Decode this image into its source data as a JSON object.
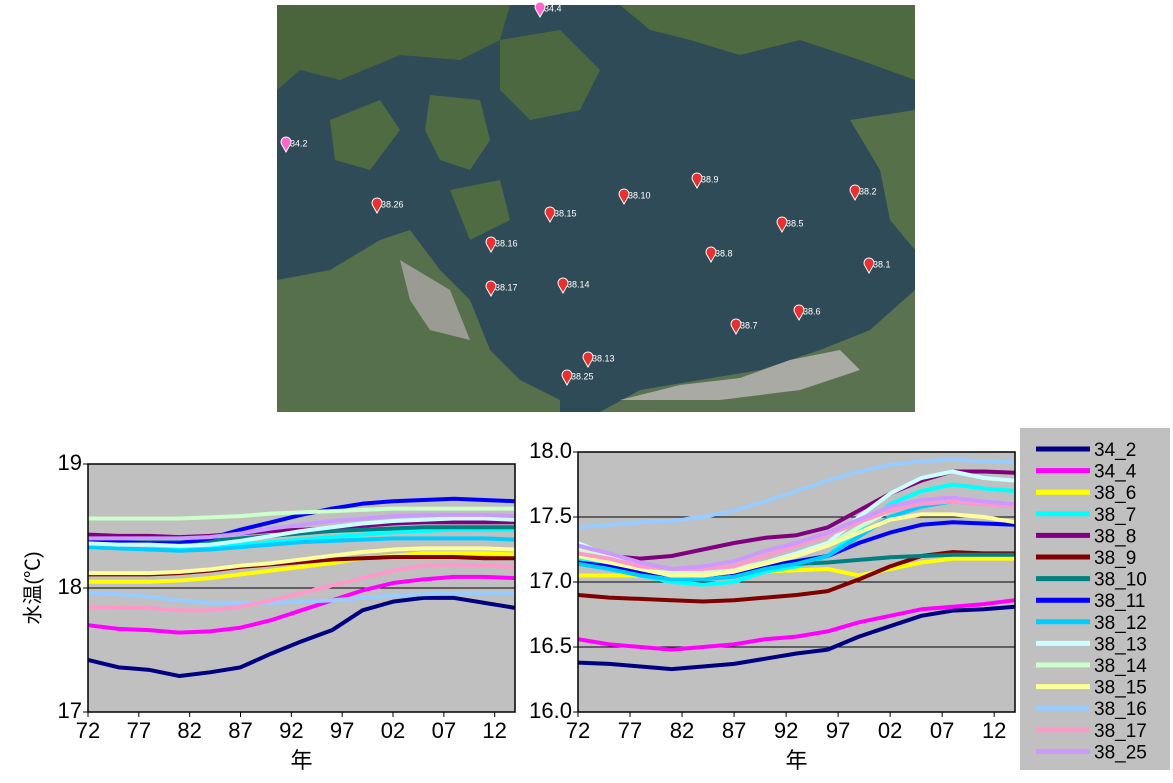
{
  "map": {
    "markers": [
      "34.4",
      "34.2",
      "38.26",
      "38.15",
      "38.10",
      "38.9",
      "38.2",
      "38.5",
      "38.16",
      "38.8",
      "38.1",
      "38.17",
      "38.14",
      "38.7",
      "38.6",
      "38.13",
      "38.25"
    ]
  },
  "chart_data": [
    {
      "type": "line",
      "y_label": "水温(℃)",
      "x_label": "年",
      "x": [
        1972,
        1975,
        1978,
        1981,
        1984,
        1987,
        1990,
        1993,
        1996,
        1999,
        2002,
        2005,
        2008,
        2011,
        2014
      ],
      "xlim": [
        1972,
        2014
      ],
      "xticks": [
        {
          "value": 1972,
          "label": "72"
        },
        {
          "value": 1977,
          "label": "77"
        },
        {
          "value": 1982,
          "label": "82"
        },
        {
          "value": 1987,
          "label": "87"
        },
        {
          "value": 1992,
          "label": "92"
        },
        {
          "value": 1997,
          "label": "97"
        },
        {
          "value": 2002,
          "label": "02"
        },
        {
          "value": 2007,
          "label": "07"
        },
        {
          "value": 2012,
          "label": "12"
        }
      ],
      "ylim": [
        17,
        19
      ],
      "yticks": [
        17,
        18,
        19
      ],
      "grid": true,
      "series": [
        {
          "color": "#000080",
          "values": [
            17.42,
            17.36,
            17.34,
            17.29,
            17.32,
            17.36,
            17.47,
            17.57,
            17.66,
            17.82,
            17.89,
            17.92,
            17.92,
            17.88,
            17.84
          ]
        },
        {
          "color": "#ff00ff",
          "values": [
            17.7,
            17.67,
            17.66,
            17.64,
            17.65,
            17.68,
            17.74,
            17.82,
            17.9,
            17.98,
            18.04,
            18.07,
            18.09,
            18.09,
            18.08
          ]
        },
        {
          "color": "#ffff00",
          "values": [
            18.05,
            18.05,
            18.05,
            18.06,
            18.08,
            18.11,
            18.14,
            18.17,
            18.2,
            18.24,
            18.26,
            18.28,
            18.28,
            18.28,
            18.27
          ]
        },
        {
          "color": "#00ffff",
          "values": [
            18.38,
            18.36,
            18.35,
            18.33,
            18.33,
            18.35,
            18.37,
            18.39,
            18.41,
            18.43,
            18.45,
            18.46,
            18.47,
            18.47,
            18.47
          ]
        },
        {
          "color": "#800080",
          "values": [
            18.43,
            18.42,
            18.42,
            18.41,
            18.42,
            18.44,
            18.46,
            18.47,
            18.48,
            18.5,
            18.52,
            18.53,
            18.53,
            18.53,
            18.53
          ]
        },
        {
          "color": "#800000",
          "values": [
            18.11,
            18.11,
            18.11,
            18.12,
            18.14,
            18.17,
            18.19,
            18.21,
            18.23,
            18.24,
            18.25,
            18.25,
            18.25,
            18.24,
            18.24
          ]
        },
        {
          "color": "#008080",
          "values": [
            18.4,
            18.39,
            18.38,
            18.37,
            18.38,
            18.4,
            18.42,
            18.44,
            18.46,
            18.47,
            18.48,
            18.49,
            18.49,
            18.49,
            18.49
          ]
        },
        {
          "color": "#0000ff",
          "values": [
            18.38,
            18.37,
            18.36,
            18.36,
            18.4,
            18.47,
            18.53,
            18.59,
            18.64,
            18.68,
            18.7,
            18.71,
            18.72,
            18.71,
            18.7
          ]
        },
        {
          "color": "#00ccff",
          "values": [
            18.33,
            18.32,
            18.31,
            18.3,
            18.31,
            18.33,
            18.35,
            18.37,
            18.38,
            18.39,
            18.4,
            18.4,
            18.4,
            18.4,
            18.39
          ]
        },
        {
          "color": "#ccffff",
          "values": [
            18.36,
            18.35,
            18.35,
            18.34,
            18.35,
            18.38,
            18.42,
            18.46,
            18.49,
            18.52,
            18.54,
            18.55,
            18.56,
            18.56,
            18.55
          ]
        },
        {
          "color": "#ccffcc",
          "values": [
            18.56,
            18.56,
            18.56,
            18.56,
            18.57,
            18.58,
            18.6,
            18.61,
            18.62,
            18.63,
            18.64,
            18.64,
            18.64,
            18.64,
            18.64
          ]
        },
        {
          "color": "#ffff99",
          "values": [
            18.12,
            18.12,
            18.12,
            18.13,
            18.15,
            18.18,
            18.2,
            18.23,
            18.26,
            18.29,
            18.31,
            18.32,
            18.32,
            18.32,
            18.31
          ]
        },
        {
          "color": "#99ccff",
          "values": [
            17.96,
            17.95,
            17.93,
            17.9,
            17.88,
            17.88,
            17.88,
            17.89,
            17.9,
            17.92,
            17.94,
            17.95,
            17.96,
            17.96,
            17.96
          ]
        },
        {
          "color": "#ff99cc",
          "values": [
            17.85,
            17.84,
            17.84,
            17.82,
            17.82,
            17.85,
            17.9,
            17.96,
            18.02,
            18.08,
            18.14,
            18.18,
            18.19,
            18.18,
            18.17
          ]
        },
        {
          "color": "#cc99ff",
          "values": [
            18.4,
            18.4,
            18.4,
            18.4,
            18.41,
            18.44,
            18.48,
            18.51,
            18.54,
            18.56,
            18.58,
            18.59,
            18.59,
            18.59,
            18.58
          ]
        }
      ]
    },
    {
      "type": "line",
      "x_label": "年",
      "x": [
        1972,
        1975,
        1978,
        1981,
        1984,
        1987,
        1990,
        1993,
        1996,
        1999,
        2002,
        2005,
        2008,
        2011,
        2014
      ],
      "xlim": [
        1972,
        2014
      ],
      "xticks": [
        {
          "value": 1972,
          "label": "72"
        },
        {
          "value": 1977,
          "label": "77"
        },
        {
          "value": 1982,
          "label": "82"
        },
        {
          "value": 1987,
          "label": "87"
        },
        {
          "value": 1992,
          "label": "92"
        },
        {
          "value": 1997,
          "label": "97"
        },
        {
          "value": 2002,
          "label": "02"
        },
        {
          "value": 2007,
          "label": "07"
        },
        {
          "value": 2012,
          "label": "12"
        }
      ],
      "ylim": [
        16,
        18
      ],
      "yticks": [
        {
          "value": 16,
          "label": "16.0"
        },
        16.5,
        {
          "value": 17,
          "label": "17.0"
        },
        17.5,
        {
          "value": 18,
          "label": "18.0"
        }
      ],
      "grid": true,
      "series": [
        {
          "name": "34_2",
          "color": "#000080",
          "values": [
            16.38,
            16.37,
            16.35,
            16.33,
            16.35,
            16.37,
            16.41,
            16.45,
            16.48,
            16.58,
            16.66,
            16.74,
            16.78,
            16.79,
            16.81
          ]
        },
        {
          "name": "34_4",
          "color": "#ff00ff",
          "values": [
            16.56,
            16.52,
            16.5,
            16.48,
            16.5,
            16.52,
            16.56,
            16.58,
            16.62,
            16.69,
            16.74,
            16.79,
            16.81,
            16.83,
            16.86
          ]
        },
        {
          "name": "38_6",
          "color": "#ffff00",
          "values": [
            17.05,
            17.05,
            17.05,
            17.06,
            17.06,
            17.07,
            17.08,
            17.09,
            17.1,
            17.05,
            17.1,
            17.15,
            17.18,
            17.18,
            17.18
          ]
        },
        {
          "name": "38_7",
          "color": "#00ffff",
          "values": [
            17.18,
            17.12,
            17.05,
            17.0,
            16.98,
            17.0,
            17.08,
            17.12,
            17.2,
            17.4,
            17.6,
            17.7,
            17.75,
            17.72,
            17.7
          ]
        },
        {
          "name": "38_8",
          "color": "#800080",
          "values": [
            17.22,
            17.2,
            17.18,
            17.2,
            17.25,
            17.3,
            17.34,
            17.36,
            17.42,
            17.55,
            17.68,
            17.78,
            17.85,
            17.85,
            17.84
          ]
        },
        {
          "name": "38_9",
          "color": "#800000",
          "values": [
            16.9,
            16.88,
            16.87,
            16.86,
            16.85,
            16.86,
            16.88,
            16.9,
            16.93,
            17.02,
            17.12,
            17.2,
            17.23,
            17.22,
            17.22
          ]
        },
        {
          "name": "38_10",
          "color": "#008080",
          "values": [
            17.14,
            17.12,
            17.1,
            17.1,
            17.1,
            17.11,
            17.13,
            17.14,
            17.15,
            17.17,
            17.19,
            17.2,
            17.21,
            17.21,
            17.21
          ]
        },
        {
          "name": "38_11",
          "color": "#0000ff",
          "values": [
            17.15,
            17.12,
            17.08,
            17.05,
            17.05,
            17.07,
            17.12,
            17.16,
            17.2,
            17.3,
            17.38,
            17.44,
            17.46,
            17.45,
            17.44
          ]
        },
        {
          "name": "38_12",
          "color": "#00ccff",
          "values": [
            17.14,
            17.1,
            17.05,
            17.02,
            17.02,
            17.04,
            17.1,
            17.14,
            17.2,
            17.35,
            17.5,
            17.58,
            17.62,
            17.6,
            17.6
          ]
        },
        {
          "name": "38_13",
          "color": "#ccffff",
          "values": [
            17.3,
            17.2,
            17.1,
            17.05,
            17.05,
            17.08,
            17.15,
            17.22,
            17.3,
            17.5,
            17.68,
            17.8,
            17.85,
            17.8,
            17.78
          ]
        },
        {
          "name": "38_14",
          "color": "#ccffcc",
          "values": [
            17.25,
            17.18,
            17.12,
            17.08,
            17.08,
            17.1,
            17.15,
            17.2,
            17.28,
            17.42,
            17.55,
            17.62,
            17.65,
            17.62,
            17.6
          ]
        },
        {
          "name": "38_15",
          "color": "#ffff99",
          "values": [
            17.2,
            17.15,
            17.1,
            17.05,
            17.05,
            17.08,
            17.14,
            17.2,
            17.28,
            17.38,
            17.48,
            17.52,
            17.52,
            17.5,
            17.46
          ]
        },
        {
          "name": "38_16",
          "color": "#99ccff",
          "values": [
            17.42,
            17.44,
            17.46,
            17.47,
            17.5,
            17.55,
            17.62,
            17.7,
            17.78,
            17.85,
            17.9,
            17.93,
            17.94,
            17.93,
            17.92
          ]
        },
        {
          "name": "38_17",
          "color": "#ff99cc",
          "values": [
            17.22,
            17.18,
            17.12,
            17.1,
            17.1,
            17.12,
            17.2,
            17.28,
            17.36,
            17.46,
            17.55,
            17.6,
            17.62,
            17.6,
            17.58
          ]
        },
        {
          "name": "38_25",
          "color": "#cc99ff",
          "values": [
            17.28,
            17.22,
            17.15,
            17.1,
            17.12,
            17.16,
            17.24,
            17.3,
            17.38,
            17.48,
            17.58,
            17.63,
            17.65,
            17.62,
            17.6
          ]
        }
      ]
    }
  ]
}
